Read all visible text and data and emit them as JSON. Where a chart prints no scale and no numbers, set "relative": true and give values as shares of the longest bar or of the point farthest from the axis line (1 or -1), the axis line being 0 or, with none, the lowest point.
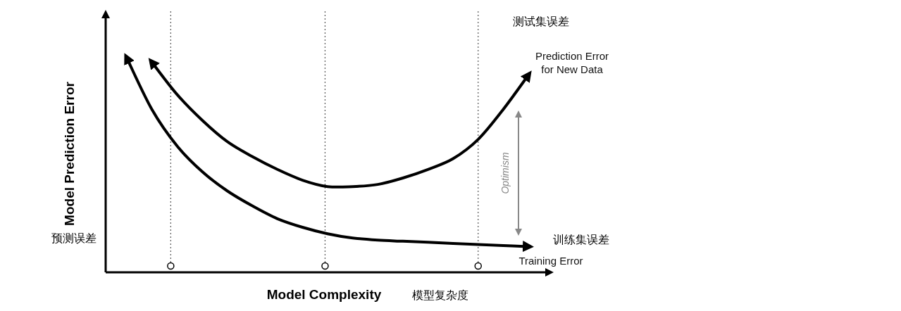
{
  "chart_data": {
    "type": "line",
    "relative": true,
    "xlabel": "Model Complexity",
    "ylabel": "Model Prediction Error",
    "categories": [
      null,
      null,
      null,
      null,
      null,
      null,
      null,
      null,
      null,
      null,
      null,
      null,
      null,
      null,
      null,
      null,
      null
    ],
    "series": [
      {
        "name": "Prediction Error\nfor New Data",
        "color": "#000000",
        "values": [
          null,
          0.98,
          0.83,
          0.71,
          0.61,
          0.54,
          0.48,
          0.43,
          0.4,
          0.4,
          0.41,
          0.44,
          0.48,
          0.53,
          0.62,
          0.76,
          0.92
        ]
      },
      {
        "name": "Training Error",
        "color": "#000000",
        "values": [
          1.0,
          0.76,
          0.59,
          0.47,
          0.38,
          0.31,
          0.25,
          0.21,
          0.18,
          0.16,
          0.15,
          0.145,
          0.14,
          0.135,
          0.13,
          0.125,
          0.12
        ]
      }
    ],
    "annotations": [
      "Optimism",
      "预测误差",
      "模型复杂度",
      "测试集误差",
      "训练集误差"
    ],
    "legend": false,
    "grid": false,
    "marker": "none",
    "line_style": "solid"
  }
}
